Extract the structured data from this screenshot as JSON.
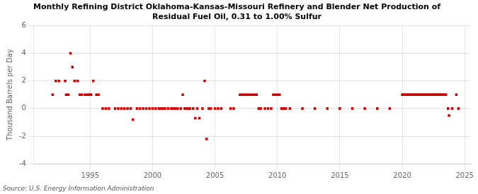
{
  "chart_data": {
    "type": "scatter",
    "title": "Monthly Refining District Oklahoma-Kansas-Missouri Refinery and Blender Net Production of\nResidual Fuel Oil, 0.31 to 1.00% Sulfur",
    "ylabel": "Thousand Barrels per Day",
    "source": "Source: U.S. Energy Information Administration",
    "color": "#cc0000",
    "marker": "square",
    "grid": true,
    "xlim": [
      1990.5,
      2025.5
    ],
    "xticks": [
      1995,
      2000,
      2005,
      2010,
      2015,
      2020,
      2025
    ],
    "ylim": [
      -4,
      6
    ],
    "yticks": [
      -4,
      -2,
      0,
      2,
      4,
      6
    ],
    "x": [
      1992.0,
      1992.25,
      1992.5,
      1993.0,
      1993.08,
      1993.25,
      1993.42,
      1993.58,
      1993.75,
      1994.0,
      1994.17,
      1994.33,
      1994.58,
      1994.75,
      1994.92,
      1995.0,
      1995.08,
      1995.25,
      1995.5,
      1995.67,
      1996.0,
      1996.25,
      1996.5,
      1997.0,
      1997.25,
      1997.5,
      1997.75,
      1998.0,
      1998.25,
      1998.42,
      1998.75,
      1999.0,
      1999.25,
      1999.5,
      1999.75,
      2000.0,
      2000.25,
      2000.5,
      2000.67,
      2000.83,
      2001.0,
      2001.25,
      2001.5,
      2001.67,
      2001.83,
      2002.0,
      2002.25,
      2002.42,
      2002.58,
      2002.75,
      2002.92,
      2003.0,
      2003.25,
      2003.42,
      2003.58,
      2003.75,
      2004.0,
      2004.17,
      2004.33,
      2004.5,
      2004.67,
      2005.0,
      2005.25,
      2005.5,
      2006.25,
      2006.5,
      2007.0,
      2007.17,
      2007.33,
      2007.5,
      2007.67,
      2007.83,
      2008.0,
      2008.17,
      2008.33,
      2008.5,
      2008.67,
      2009.0,
      2009.25,
      2009.5,
      2009.67,
      2009.83,
      2010.0,
      2010.17,
      2010.33,
      2010.5,
      2010.67,
      2011.0,
      2012.0,
      2013.0,
      2014.0,
      2015.0,
      2016.0,
      2017.0,
      2018.0,
      2019.0,
      2020.0,
      2020.08,
      2020.17,
      2020.25,
      2020.33,
      2020.42,
      2020.5,
      2020.58,
      2020.67,
      2020.75,
      2020.83,
      2020.92,
      2021.0,
      2021.08,
      2021.17,
      2021.25,
      2021.33,
      2021.42,
      2021.5,
      2021.58,
      2021.67,
      2021.75,
      2021.83,
      2021.92,
      2022.0,
      2022.08,
      2022.17,
      2022.25,
      2022.33,
      2022.42,
      2022.5,
      2022.58,
      2022.67,
      2022.75,
      2022.83,
      2022.92,
      2023.0,
      2023.08,
      2023.17,
      2023.25,
      2023.33,
      2023.42,
      2023.5,
      2023.67,
      2023.75,
      2024.0,
      2024.33,
      2024.5
    ],
    "values": [
      1.0,
      2.0,
      2.0,
      2.0,
      1.0,
      1.0,
      4.0,
      3.0,
      2.0,
      2.0,
      1.0,
      1.0,
      1.0,
      1.0,
      1.0,
      1.0,
      1.0,
      2.0,
      1.0,
      1.0,
      0.0,
      0.0,
      0.0,
      0.0,
      0.0,
      0.0,
      0.0,
      0.0,
      0.0,
      -0.8,
      0.0,
      0.0,
      0.0,
      0.0,
      0.0,
      0.0,
      0.0,
      0.0,
      0.0,
      0.0,
      0.0,
      0.0,
      0.0,
      0.0,
      0.0,
      0.0,
      0.0,
      1.0,
      0.0,
      0.0,
      0.0,
      0.0,
      0.0,
      -0.7,
      0.0,
      -0.7,
      0.0,
      2.0,
      -2.2,
      0.0,
      0.0,
      0.0,
      0.0,
      0.0,
      0.0,
      0.0,
      1.0,
      1.0,
      1.0,
      1.0,
      1.0,
      1.0,
      1.0,
      1.0,
      1.0,
      0.0,
      0.0,
      0.0,
      0.0,
      0.0,
      1.0,
      1.0,
      1.0,
      1.0,
      0.0,
      0.0,
      0.0,
      0.0,
      0.0,
      0.0,
      0.0,
      0.0,
      0.0,
      0.0,
      0.0,
      0.0,
      1.0,
      1.0,
      1.0,
      1.0,
      1.0,
      1.0,
      1.0,
      1.0,
      1.0,
      1.0,
      1.0,
      1.0,
      1.0,
      1.0,
      1.0,
      1.0,
      1.0,
      1.0,
      1.0,
      1.0,
      1.0,
      1.0,
      1.0,
      1.0,
      1.0,
      1.0,
      1.0,
      1.0,
      1.0,
      1.0,
      1.0,
      1.0,
      1.0,
      1.0,
      1.0,
      1.0,
      1.0,
      1.0,
      1.0,
      1.0,
      1.0,
      1.0,
      1.0,
      0.0,
      -0.5,
      0.0,
      1.0,
      0.0
    ]
  }
}
